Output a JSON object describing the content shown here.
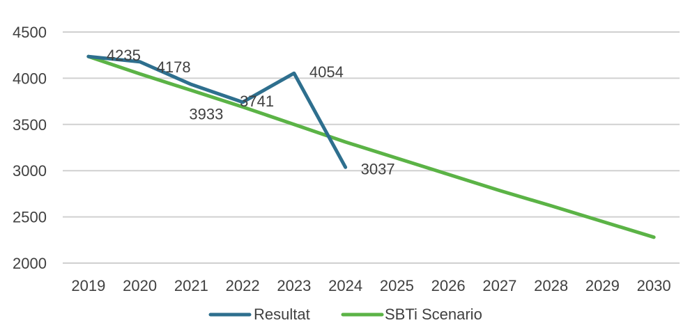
{
  "chart_data": {
    "type": "line",
    "categories": [
      "2019",
      "2020",
      "2021",
      "2022",
      "2023",
      "2024",
      "2025",
      "2026",
      "2027",
      "2028",
      "2029",
      "2030"
    ],
    "ylim": [
      2000,
      4500
    ],
    "yticks": [
      2000,
      2500,
      3000,
      3500,
      4000,
      4500
    ],
    "grid": true,
    "legend_position": "bottom",
    "series": [
      {
        "name": "Resultat",
        "color": "#2E6F8E",
        "values": [
          4235,
          4178,
          3933,
          3741,
          4054,
          3037,
          null,
          null,
          null,
          null,
          null,
          null
        ],
        "labels": [
          "4235",
          "4178",
          "3933",
          "3741",
          "4054",
          "3037"
        ]
      },
      {
        "name": "SBTi Scenario",
        "color": "#5BB346",
        "values": [
          4235,
          4047,
          3869,
          3690,
          3500,
          3310,
          3135,
          2960,
          2785,
          2620,
          2450,
          2280
        ]
      }
    ]
  }
}
